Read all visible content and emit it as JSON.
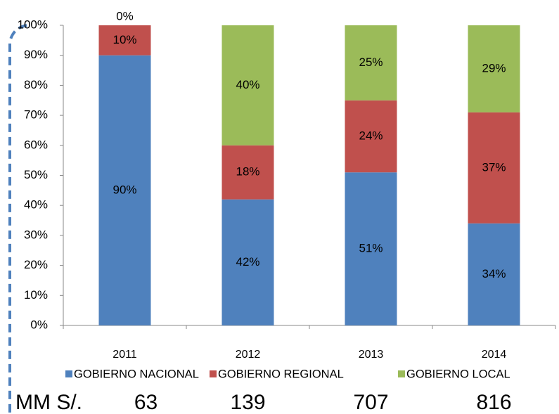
{
  "chart_data": {
    "type": "stacked_bar",
    "categories": [
      "2011",
      "2012",
      "2013",
      "2014"
    ],
    "series": [
      {
        "name": "GOBIERNO NACIONAL",
        "color": "#4f81bd",
        "values": [
          90,
          42,
          51,
          34
        ],
        "value_labels": [
          "90%",
          "42%",
          "51%",
          "34%"
        ]
      },
      {
        "name": "GOBIERNO REGIONAL",
        "color": "#c0504d",
        "values": [
          10,
          18,
          24,
          37
        ],
        "value_labels": [
          "10%",
          "18%",
          "24%",
          "37%"
        ]
      },
      {
        "name": "GOBIERNO LOCAL",
        "color": "#9bbb59",
        "values": [
          0,
          40,
          25,
          29
        ],
        "value_labels": [
          "0%",
          "40%",
          "25%",
          "29%"
        ]
      }
    ],
    "ylim": [
      0,
      100
    ],
    "yticks": [
      {
        "value": 0,
        "label": "0%"
      },
      {
        "value": 10,
        "label": "10%"
      },
      {
        "value": 20,
        "label": "20%"
      },
      {
        "value": 30,
        "label": "30%"
      },
      {
        "value": 40,
        "label": "40%"
      },
      {
        "value": 50,
        "label": "50%"
      },
      {
        "value": 60,
        "label": "60%"
      },
      {
        "value": 70,
        "label": "70%"
      },
      {
        "value": 80,
        "label": "80%"
      },
      {
        "value": 90,
        "label": "90%"
      },
      {
        "value": 100,
        "label": "100%"
      }
    ],
    "legend": "bottom",
    "footer": {
      "label": "MM S/.",
      "values": [
        63,
        139,
        707,
        816
      ]
    }
  }
}
